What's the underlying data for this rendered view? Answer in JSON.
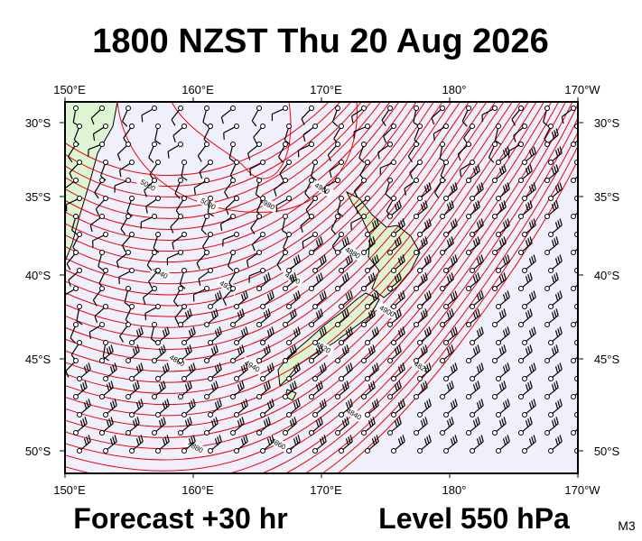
{
  "header": {
    "title": "1800 NZST Thu 20 Aug 2026"
  },
  "map": {
    "lon_labels": [
      "150°E",
      "160°E",
      "170°E",
      "180°",
      "170°W"
    ],
    "lat_labels": [
      "30°S",
      "35°S",
      "40°S",
      "45°S",
      "50°S"
    ],
    "contour_labels": [
      "5000",
      "5000",
      "4980",
      "4960",
      "4940",
      "4920",
      "4900",
      "4880",
      "4860",
      "4940",
      "4920",
      "4900",
      "4880",
      "4860",
      "4840",
      "4820"
    ]
  },
  "footer": {
    "forecast": "Forecast +30 hr",
    "level": "Level 550 hPa",
    "model": "M3"
  }
}
